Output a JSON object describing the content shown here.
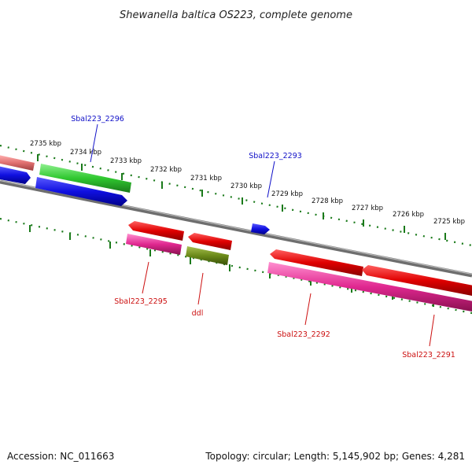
{
  "title": "Shewanella baltica OS223, complete genome",
  "ticks": [
    {
      "label": "2735 kbp"
    },
    {
      "label": "2734 kbp"
    },
    {
      "label": "2733 kbp"
    },
    {
      "label": "2732 kbp"
    },
    {
      "label": "2731 kbp"
    },
    {
      "label": "2730 kbp"
    },
    {
      "label": "2729 kbp"
    },
    {
      "label": "2728 kbp"
    },
    {
      "label": "2727 kbp"
    },
    {
      "label": "2726 kbp"
    },
    {
      "label": "2725 kbp"
    }
  ],
  "gene_labels": [
    {
      "text": "Sbal223_2296",
      "color": "#1010c8"
    },
    {
      "text": "Sbal223_2293",
      "color": "#1010c8"
    },
    {
      "text": "Sbal223_2295",
      "color": "#cc1010"
    },
    {
      "text": "ddl",
      "color": "#cc1010"
    },
    {
      "text": "Sbal223_2292",
      "color": "#cc1010"
    },
    {
      "text": "Sbal223_2291",
      "color": "#cc1010"
    }
  ],
  "colors": {
    "tick": "#1a7a1a",
    "backbone": "#8a8a8a",
    "forward_cds": "#1010e0",
    "reverse_cds": "#e00000",
    "forward_gene": "#30c830",
    "reverse_gene": "#e02890",
    "rna_gene": "#6b8a1a",
    "faded_gene": "#e07070"
  },
  "footer": {
    "accession": "Accession: NC_011663",
    "topology": "Topology: circular; Length: 5,145,902 bp; Genes: 4,281"
  }
}
